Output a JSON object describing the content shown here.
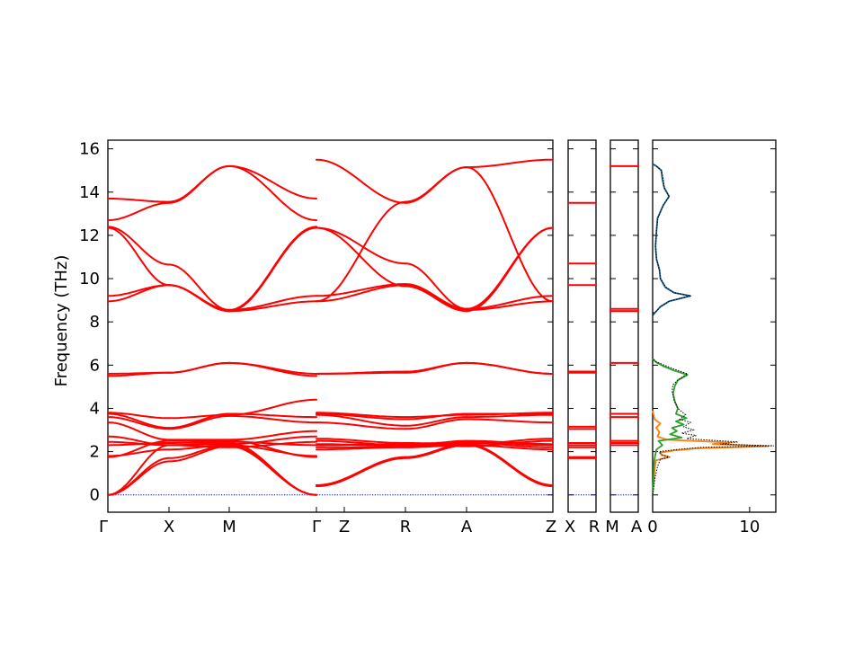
{
  "chart_data": {
    "type": "line",
    "title": "",
    "ylabel": "Frequency (THz)",
    "ylim": [
      -0.8,
      16.4
    ],
    "yticks": [
      0,
      2,
      4,
      6,
      8,
      10,
      12,
      14,
      16
    ],
    "grid": false,
    "colors": {
      "bands": "#ff0000",
      "zero_line": "#0000cc",
      "dos_total": "#000000",
      "dos_orange": "#ff7f0e",
      "dos_green": "#2ca02c",
      "dos_blue": "#1f5f8b"
    },
    "band_panels": [
      {
        "name": "main",
        "ticks": [
          "Γ",
          "X",
          "M",
          "Γ",
          "Z",
          "R",
          "A",
          "Z"
        ],
        "segments": [
          {
            "from": "Γ",
            "to": "X",
            "bands": [
              [
                0.0,
                1.55
              ],
              [
                0.0,
                1.7
              ],
              [
                0.0,
                2.3
              ],
              [
                1.75,
                2.5
              ],
              [
                1.8,
                2.1
              ],
              [
                2.3,
                2.4
              ],
              [
                2.45,
                2.3
              ],
              [
                2.7,
                2.3
              ],
              [
                3.35,
                2.55
              ],
              [
                3.6,
                3.05
              ],
              [
                3.75,
                3.1
              ],
              [
                3.8,
                3.55
              ],
              [
                5.6,
                5.65
              ],
              [
                5.5,
                5.65
              ],
              [
                8.95,
                9.7
              ],
              [
                9.2,
                9.7
              ],
              [
                12.4,
                10.65
              ],
              [
                12.35,
                9.7
              ],
              [
                12.7,
                13.5
              ],
              [
                13.7,
                13.55
              ]
            ]
          },
          {
            "from": "X",
            "to": "M",
            "bands": [
              [
                1.55,
                2.25
              ],
              [
                1.7,
                2.3
              ],
              [
                2.3,
                2.4
              ],
              [
                2.5,
                2.5
              ],
              [
                2.1,
                2.3
              ],
              [
                2.4,
                2.45
              ],
              [
                2.3,
                2.2
              ],
              [
                2.3,
                2.35
              ],
              [
                2.55,
                2.55
              ],
              [
                3.05,
                3.65
              ],
              [
                3.1,
                3.75
              ],
              [
                3.55,
                3.7
              ],
              [
                5.65,
                6.1
              ],
              [
                5.65,
                6.1
              ],
              [
                9.7,
                8.5
              ],
              [
                9.7,
                8.55
              ],
              [
                10.65,
                8.55
              ],
              [
                9.7,
                8.5
              ],
              [
                13.5,
                15.2
              ],
              [
                13.55,
                15.2
              ]
            ]
          },
          {
            "from": "M",
            "to": "Γ",
            "bands": [
              [
                2.25,
                0.0
              ],
              [
                2.3,
                0.0
              ],
              [
                2.4,
                0.0
              ],
              [
                2.5,
                1.75
              ],
              [
                2.3,
                1.8
              ],
              [
                2.45,
                2.3
              ],
              [
                2.2,
                2.45
              ],
              [
                2.35,
                2.7
              ],
              [
                2.55,
                2.95
              ],
              [
                3.65,
                3.35
              ],
              [
                3.75,
                3.6
              ],
              [
                3.7,
                4.4
              ],
              [
                6.1,
                5.6
              ],
              [
                6.1,
                5.5
              ],
              [
                8.5,
                8.95
              ],
              [
                8.55,
                9.2
              ],
              [
                8.55,
                12.4
              ],
              [
                8.5,
                12.35
              ],
              [
                15.2,
                12.7
              ],
              [
                15.2,
                13.7
              ]
            ]
          },
          {
            "from": "Z",
            "to": "R",
            "bands": [
              [
                0.4,
                1.7
              ],
              [
                0.45,
                1.75
              ],
              [
                2.2,
                2.2
              ],
              [
                2.3,
                2.35
              ],
              [
                2.35,
                2.25
              ],
              [
                2.1,
                2.2
              ],
              [
                2.5,
                2.3
              ],
              [
                2.6,
                2.4
              ],
              [
                3.35,
                3.05
              ],
              [
                3.7,
                3.2
              ],
              [
                3.75,
                3.5
              ],
              [
                3.8,
                3.6
              ],
              [
                5.6,
                5.7
              ],
              [
                5.6,
                5.65
              ],
              [
                8.95,
                9.7
              ],
              [
                9.2,
                9.75
              ],
              [
                12.35,
                10.7
              ],
              [
                12.35,
                9.65
              ],
              [
                15.5,
                13.5
              ],
              [
                8.95,
                13.55
              ]
            ]
          },
          {
            "from": "R",
            "to": "A",
            "bands": [
              [
                1.7,
                2.3
              ],
              [
                1.75,
                2.35
              ],
              [
                2.2,
                2.4
              ],
              [
                2.35,
                2.45
              ],
              [
                2.25,
                2.5
              ],
              [
                2.2,
                2.3
              ],
              [
                2.3,
                2.25
              ],
              [
                2.4,
                2.35
              ],
              [
                3.05,
                3.5
              ],
              [
                3.2,
                3.6
              ],
              [
                3.5,
                3.75
              ],
              [
                3.6,
                3.7
              ],
              [
                5.7,
                6.1
              ],
              [
                5.65,
                6.1
              ],
              [
                9.7,
                8.55
              ],
              [
                9.75,
                8.6
              ],
              [
                10.7,
                8.6
              ],
              [
                9.65,
                8.5
              ],
              [
                13.5,
                15.15
              ],
              [
                13.55,
                15.15
              ]
            ]
          },
          {
            "from": "A",
            "to": "Z",
            "bands": [
              [
                2.3,
                0.4
              ],
              [
                2.35,
                0.45
              ],
              [
                2.4,
                2.2
              ],
              [
                2.45,
                2.3
              ],
              [
                2.5,
                2.35
              ],
              [
                2.3,
                2.1
              ],
              [
                2.25,
                2.5
              ],
              [
                2.35,
                2.6
              ],
              [
                3.5,
                3.35
              ],
              [
                3.6,
                3.7
              ],
              [
                3.75,
                3.75
              ],
              [
                3.7,
                3.8
              ],
              [
                6.1,
                5.6
              ],
              [
                6.1,
                5.6
              ],
              [
                8.55,
                8.95
              ],
              [
                8.6,
                9.2
              ],
              [
                8.6,
                12.35
              ],
              [
                8.5,
                12.35
              ],
              [
                15.15,
                15.5
              ],
              [
                15.15,
                8.95
              ]
            ]
          }
        ]
      },
      {
        "name": "X-R",
        "ticks": [
          "X",
          "R"
        ],
        "levels": [
          1.7,
          1.75,
          2.2,
          2.3,
          2.4,
          3.05,
          3.15,
          5.65,
          5.7,
          9.7,
          10.7,
          13.5
        ]
      },
      {
        "name": "M-A",
        "ticks": [
          "M",
          "A"
        ],
        "levels": [
          2.3,
          2.4,
          2.5,
          3.6,
          3.75,
          6.1,
          8.5,
          8.6,
          15.2
        ]
      }
    ],
    "dos_panel": {
      "xlim": [
        0,
        12.7
      ],
      "xticks": [
        0,
        10
      ],
      "series": [
        {
          "color_key": "dos_total",
          "points": [
            [
              0.0,
              0.0
            ],
            [
              0.25,
              0.8
            ],
            [
              0.5,
              1.3
            ],
            [
              0.8,
              1.65
            ],
            [
              1.8,
              1.75
            ],
            [
              1.0,
              1.85
            ],
            [
              0.7,
              2.0
            ],
            [
              2.5,
              2.1
            ],
            [
              5.0,
              2.2
            ],
            [
              12.5,
              2.27
            ],
            [
              7.0,
              2.35
            ],
            [
              8.8,
              2.45
            ],
            [
              3.5,
              2.6
            ],
            [
              4.5,
              2.75
            ],
            [
              3.0,
              2.85
            ],
            [
              4.2,
              3.0
            ],
            [
              3.2,
              3.15
            ],
            [
              3.9,
              3.35
            ],
            [
              2.8,
              3.5
            ],
            [
              3.4,
              3.7
            ],
            [
              2.6,
              4.0
            ],
            [
              2.2,
              4.4
            ],
            [
              2.0,
              4.8
            ],
            [
              2.1,
              5.1
            ],
            [
              2.7,
              5.35
            ],
            [
              3.6,
              5.6
            ],
            [
              2.3,
              5.8
            ],
            [
              1.2,
              6.0
            ],
            [
              0.4,
              6.15
            ],
            [
              0.0,
              6.3
            ],
            [
              0.0,
              8.4
            ],
            [
              0.4,
              8.5
            ],
            [
              0.8,
              8.7
            ],
            [
              1.7,
              8.95
            ],
            [
              3.9,
              9.2
            ],
            [
              2.2,
              9.35
            ],
            [
              1.4,
              9.6
            ],
            [
              0.8,
              10.0
            ],
            [
              0.7,
              10.4
            ],
            [
              0.4,
              10.9
            ],
            [
              0.3,
              11.5
            ],
            [
              0.4,
              12.2
            ],
            [
              0.55,
              12.8
            ],
            [
              1.1,
              13.4
            ],
            [
              1.7,
              13.8
            ],
            [
              1.2,
              14.2
            ],
            [
              1.1,
              14.6
            ],
            [
              0.9,
              15.0
            ],
            [
              0.4,
              15.2
            ],
            [
              0.0,
              15.3
            ]
          ]
        },
        {
          "color_key": "dos_orange",
          "points": [
            [
              0.0,
              0.0
            ],
            [
              0.1,
              0.6
            ],
            [
              0.2,
              1.2
            ],
            [
              0.35,
              1.6
            ],
            [
              1.7,
              1.75
            ],
            [
              0.9,
              1.85
            ],
            [
              0.7,
              1.95
            ],
            [
              2.2,
              2.05
            ],
            [
              4.5,
              2.15
            ],
            [
              11.9,
              2.25
            ],
            [
              6.2,
              2.35
            ],
            [
              8.0,
              2.42
            ],
            [
              1.5,
              2.55
            ],
            [
              0.5,
              2.7
            ],
            [
              0.7,
              2.9
            ],
            [
              0.35,
              3.1
            ],
            [
              0.8,
              3.3
            ],
            [
              0.2,
              3.5
            ],
            [
              0.1,
              3.7
            ],
            [
              0.0,
              3.9
            ]
          ]
        },
        {
          "color_key": "dos_green",
          "points": [
            [
              0.0,
              0.0
            ],
            [
              0.08,
              0.7
            ],
            [
              0.12,
              1.4
            ],
            [
              0.25,
              1.8
            ],
            [
              0.4,
              2.1
            ],
            [
              1.0,
              2.3
            ],
            [
              0.6,
              2.5
            ],
            [
              3.0,
              2.65
            ],
            [
              1.8,
              2.8
            ],
            [
              2.5,
              2.95
            ],
            [
              2.0,
              3.1
            ],
            [
              3.2,
              3.25
            ],
            [
              2.4,
              3.4
            ],
            [
              3.5,
              3.55
            ],
            [
              2.4,
              3.75
            ],
            [
              2.6,
              4.0
            ],
            [
              2.3,
              4.3
            ],
            [
              2.1,
              4.7
            ],
            [
              2.3,
              5.05
            ],
            [
              2.6,
              5.3
            ],
            [
              3.6,
              5.55
            ],
            [
              2.2,
              5.75
            ],
            [
              1.1,
              5.95
            ],
            [
              0.3,
              6.15
            ],
            [
              0.0,
              6.3
            ]
          ]
        },
        {
          "color_key": "dos_blue",
          "points": [
            [
              0.0,
              8.3
            ],
            [
              0.4,
              8.5
            ],
            [
              0.8,
              8.7
            ],
            [
              1.7,
              8.95
            ],
            [
              3.9,
              9.2
            ],
            [
              2.2,
              9.35
            ],
            [
              1.3,
              9.6
            ],
            [
              0.8,
              10.0
            ],
            [
              0.7,
              10.4
            ],
            [
              0.4,
              10.9
            ],
            [
              0.3,
              11.5
            ],
            [
              0.4,
              12.2
            ],
            [
              0.5,
              12.8
            ],
            [
              1.1,
              13.4
            ],
            [
              1.7,
              13.8
            ],
            [
              1.2,
              14.2
            ],
            [
              1.0,
              14.6
            ],
            [
              0.9,
              15.0
            ],
            [
              0.4,
              15.2
            ],
            [
              0.0,
              15.3
            ]
          ]
        }
      ]
    }
  }
}
